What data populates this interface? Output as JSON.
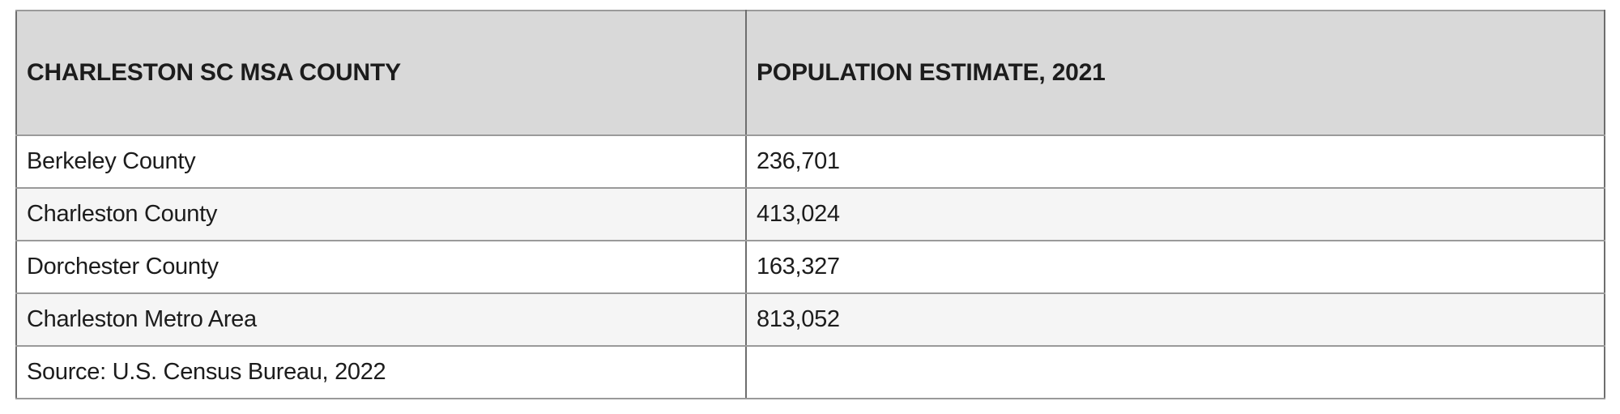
{
  "table": {
    "columns": [
      "CHARLESTON SC MSA COUNTY",
      "POPULATION ESTIMATE, 2021"
    ],
    "rows": [
      {
        "county": "Berkeley County",
        "population": "236,701"
      },
      {
        "county": "Charleston County",
        "population": "413,024"
      },
      {
        "county": "Dorchester County",
        "population": "163,327"
      },
      {
        "county": "Charleston Metro Area",
        "population": "813,052"
      }
    ],
    "source_note": "Source: U.S. Census Bureau, 2022"
  },
  "colors": {
    "header_background": "#d9d9d9",
    "row_alternate_background": "#f5f5f5",
    "row_background": "#ffffff",
    "border_horizontal": "#9a9a9a",
    "border_vertical": "#6e6e6e",
    "text": "#1c1c1c"
  },
  "chart_data": {
    "type": "table",
    "title": "",
    "columns": [
      "CHARLESTON SC MSA COUNTY",
      "POPULATION ESTIMATE, 2021"
    ],
    "rows": [
      [
        "Berkeley County",
        236701
      ],
      [
        "Charleston County",
        413024
      ],
      [
        "Dorchester County",
        163327
      ],
      [
        "Charleston Metro Area",
        813052
      ]
    ],
    "source": "Source: U.S. Census Bureau, 2022"
  }
}
